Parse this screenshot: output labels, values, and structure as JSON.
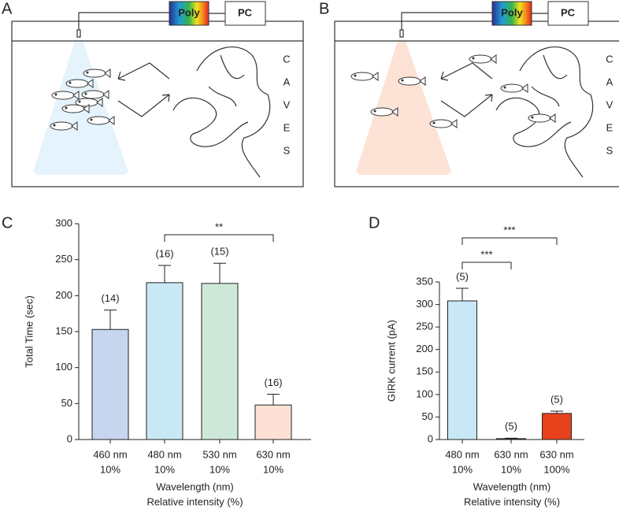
{
  "panels": {
    "a": "A",
    "b": "B",
    "c": "C",
    "d": "D"
  },
  "diagram": {
    "poly": "Poly",
    "pc": "PC",
    "caves": [
      "C",
      "A",
      "V",
      "E",
      "S"
    ]
  },
  "chart_data": [
    {
      "type": "bar",
      "categories": [
        "460 nm",
        "480 nm",
        "530 nm",
        "630 nm"
      ],
      "category_sublabels": [
        "10%",
        "10%",
        "10%",
        "10%"
      ],
      "values": [
        153,
        218,
        217,
        48
      ],
      "errors": [
        27,
        24,
        28,
        15
      ],
      "n_labels": [
        "(14)",
        "(16)",
        "(15)",
        "(16)"
      ],
      "colors": [
        "#c6d6ef",
        "#c9e8f5",
        "#cde8d8",
        "#fde1d6"
      ],
      "ylim": [
        0,
        300
      ],
      "yticks": [
        0,
        50,
        100,
        150,
        200,
        250,
        300
      ],
      "y_label": "Total Time (sec)",
      "x_label": "Wavelength (nm)",
      "x_sublabel": "Relative intensity (%)",
      "significance": [
        "**"
      ]
    },
    {
      "type": "bar",
      "categories": [
        "480 nm",
        "630 nm",
        "630 nm"
      ],
      "category_sublabels": [
        "10%",
        "10%",
        "100%"
      ],
      "values": [
        308,
        2,
        58
      ],
      "errors": [
        28,
        1,
        5
      ],
      "n_labels": [
        "(5)",
        "(5)",
        "(5)"
      ],
      "colors": [
        "#c9e8f5",
        "#222222",
        "#e8421c"
      ],
      "ylim": [
        0,
        350
      ],
      "yticks": [
        0,
        50,
        100,
        150,
        200,
        250,
        300,
        350
      ],
      "y_label": "GIRK current (pA)",
      "x_label": "Wavelength (nm)",
      "x_sublabel": "Relative intensity (%)",
      "significance": [
        "***",
        "***"
      ]
    }
  ]
}
